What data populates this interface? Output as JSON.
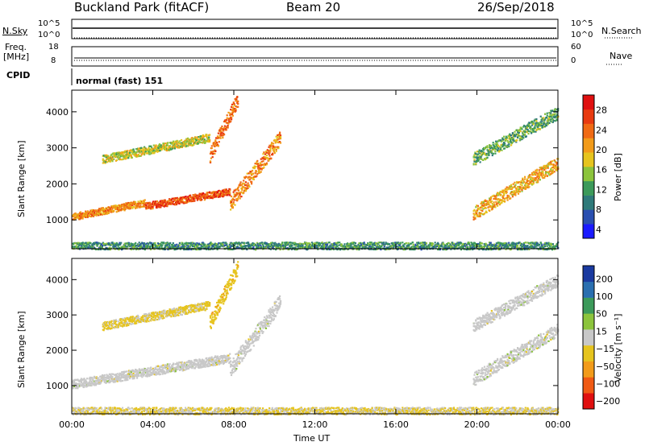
{
  "header": {
    "station": "Buckland Park (fitACF)",
    "beam": "Beam 20",
    "date": "26/Sep/2018"
  },
  "top_panels": {
    "nsky": {
      "left_label": "N.Sky",
      "left_ticks": [
        "10^5",
        "10^0"
      ],
      "right_ticks": [
        "10^5",
        "10^0"
      ],
      "right_label": "N.Search"
    },
    "freq": {
      "left_label_1": "Freq.",
      "left_label_2": "[MHz]",
      "left_ticks": [
        "18",
        "8"
      ],
      "right_ticks": [
        "60",
        "0"
      ],
      "right_label": "Nave"
    },
    "cpid": {
      "left_label": "CPID",
      "value": "normal (fast) 151"
    }
  },
  "chart_data": [
    {
      "type": "heatmap",
      "title": "",
      "xlabel": "",
      "ylabel": "Slant Range [km]",
      "x_ticks": [
        "00:00",
        "04:00",
        "08:00",
        "12:00",
        "16:00",
        "20:00",
        "00:00"
      ],
      "y_ticks": [
        "1000",
        "2000",
        "3000",
        "4000"
      ],
      "ylim": [
        200,
        4600
      ],
      "xlim_hours": [
        0,
        24
      ],
      "colorbar": {
        "label": "Power [dB]",
        "ticks": [
          "28",
          "24",
          "20",
          "16",
          "12",
          "8",
          "4"
        ],
        "range": [
          0,
          32
        ],
        "colors": [
          "#1a1aff",
          "#2a4fb0",
          "#2f7a7a",
          "#3c9a5a",
          "#8cc43c",
          "#e6c41e",
          "#f29b1a",
          "#f06a14",
          "#e83a10",
          "#e01010"
        ]
      },
      "features": [
        {
          "name": "lower band",
          "start_h": 0.0,
          "end_h": 3.6,
          "range_km": [
            1100,
            1500
          ],
          "power_db": 22
        },
        {
          "name": "lower band",
          "start_h": 3.6,
          "end_h": 7.8,
          "range_km": [
            1400,
            1800
          ],
          "power_db": 26
        },
        {
          "name": "rising band",
          "start_h": 7.8,
          "end_h": 10.3,
          "range_km": [
            1500,
            3300
          ],
          "power_db": 22
        },
        {
          "name": "upper band",
          "start_h": 1.5,
          "end_h": 6.8,
          "range_km": [
            2700,
            3300
          ],
          "power_db": 16
        },
        {
          "name": "upper rising band",
          "start_h": 6.8,
          "end_h": 8.2,
          "range_km": [
            2800,
            4400
          ],
          "power_db": 24
        },
        {
          "name": "evening band",
          "start_h": 19.8,
          "end_h": 24.0,
          "range_km": [
            1200,
            2600
          ],
          "power_db": 20
        },
        {
          "name": "evening upper band",
          "start_h": 19.8,
          "end_h": 24.0,
          "range_km": [
            2700,
            4000
          ],
          "power_db": 12
        },
        {
          "name": "near range clutter",
          "start_h": 0.0,
          "end_h": 24.0,
          "range_km": [
            200,
            400
          ],
          "power_db": 10
        }
      ]
    },
    {
      "type": "heatmap",
      "title": "",
      "xlabel": "Time UT",
      "ylabel": "Slant Range [km]",
      "x_ticks": [
        "00:00",
        "04:00",
        "08:00",
        "12:00",
        "16:00",
        "20:00",
        "00:00"
      ],
      "y_ticks": [
        "1000",
        "2000",
        "3000",
        "4000"
      ],
      "ylim": [
        200,
        4600
      ],
      "xlim_hours": [
        0,
        24
      ],
      "colorbar": {
        "label": "Velocity [m s⁻¹]",
        "ticks": [
          "200",
          "100",
          "50",
          "15",
          "−15",
          "−50",
          "−100",
          "−200"
        ],
        "range": [
          -250,
          250
        ],
        "colors": [
          "#e01010",
          "#f05a14",
          "#f29b1a",
          "#e6c41e",
          "#c8c8c8",
          "#8cc43c",
          "#3c9a5a",
          "#2a6fb0",
          "#1a3aa0"
        ]
      },
      "features": [
        {
          "name": "lower band",
          "start_h": 0.0,
          "end_h": 7.8,
          "range_km": [
            1050,
            1800
          ],
          "velocity": 0
        },
        {
          "name": "rising band",
          "start_h": 7.8,
          "end_h": 10.3,
          "range_km": [
            1500,
            3400
          ],
          "velocity": 0
        },
        {
          "name": "upper band",
          "start_h": 1.5,
          "end_h": 6.8,
          "range_km": [
            2700,
            3300
          ],
          "velocity": -40
        },
        {
          "name": "upper rising band",
          "start_h": 6.8,
          "end_h": 8.2,
          "range_km": [
            2800,
            4400
          ],
          "velocity": -60
        },
        {
          "name": "evening band",
          "start_h": 19.8,
          "end_h": 24.0,
          "range_km": [
            1200,
            2600
          ],
          "velocity": 0
        },
        {
          "name": "evening upper band",
          "start_h": 19.8,
          "end_h": 24.0,
          "range_km": [
            2700,
            4000
          ],
          "velocity": 0
        },
        {
          "name": "near range clutter",
          "start_h": 0.0,
          "end_h": 24.0,
          "range_km": [
            200,
            400
          ],
          "velocity": -30
        }
      ]
    }
  ]
}
